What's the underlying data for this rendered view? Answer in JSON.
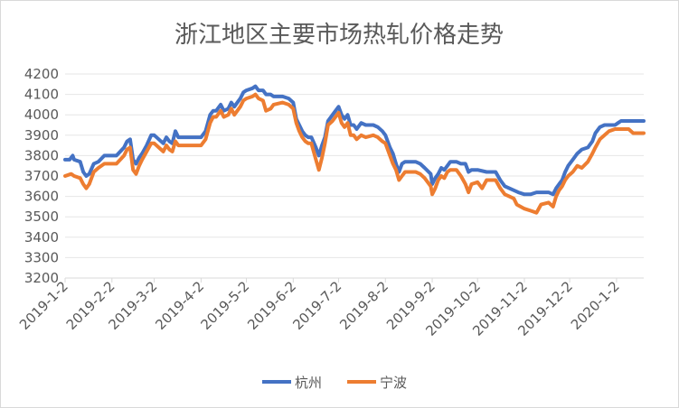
{
  "chart_data": {
    "type": "line",
    "title": "浙江地区主要市场热轧价格走势",
    "xlabel": "",
    "ylabel": "",
    "ylim": [
      3200,
      4200
    ],
    "yticks": [
      3200,
      3300,
      3400,
      3500,
      3600,
      3700,
      3800,
      3900,
      4000,
      4100,
      4200
    ],
    "date_range": [
      "2019-01-02",
      "2020-01-20"
    ],
    "xticks": [
      "2019-1-2",
      "2019-2-2",
      "2019-3-2",
      "2019-4-2",
      "2019-5-2",
      "2019-6-2",
      "2019-7-2",
      "2019-8-2",
      "2019-9-2",
      "2019-10-2",
      "2019-11-2",
      "2019-12-2",
      "2020-1-2"
    ],
    "grid": "horizontal",
    "legend_position": "bottom",
    "series": [
      {
        "name": "杭州",
        "color": "#4472C4",
        "points": [
          [
            "2019-01-02",
            3780
          ],
          [
            "2019-01-05",
            3780
          ],
          [
            "2019-01-07",
            3800
          ],
          [
            "2019-01-08",
            3780
          ],
          [
            "2019-01-12",
            3770
          ],
          [
            "2019-01-14",
            3720
          ],
          [
            "2019-01-16",
            3700
          ],
          [
            "2019-01-18",
            3710
          ],
          [
            "2019-01-21",
            3760
          ],
          [
            "2019-01-24",
            3770
          ],
          [
            "2019-01-28",
            3800
          ],
          [
            "2019-02-05",
            3800
          ],
          [
            "2019-02-10",
            3840
          ],
          [
            "2019-02-12",
            3870
          ],
          [
            "2019-02-14",
            3880
          ],
          [
            "2019-02-16",
            3780
          ],
          [
            "2019-02-18",
            3760
          ],
          [
            "2019-02-20",
            3790
          ],
          [
            "2019-02-22",
            3810
          ],
          [
            "2019-02-25",
            3850
          ],
          [
            "2019-02-28",
            3900
          ],
          [
            "2019-03-02",
            3900
          ],
          [
            "2019-03-05",
            3880
          ],
          [
            "2019-03-08",
            3860
          ],
          [
            "2019-03-10",
            3890
          ],
          [
            "2019-03-12",
            3870
          ],
          [
            "2019-03-14",
            3860
          ],
          [
            "2019-03-16",
            3920
          ],
          [
            "2019-03-18",
            3890
          ],
          [
            "2019-03-25",
            3890
          ],
          [
            "2019-04-02",
            3890
          ],
          [
            "2019-04-05",
            3920
          ],
          [
            "2019-04-08",
            4000
          ],
          [
            "2019-04-10",
            4020
          ],
          [
            "2019-04-12",
            4020
          ],
          [
            "2019-04-15",
            4050
          ],
          [
            "2019-04-17",
            4020
          ],
          [
            "2019-04-20",
            4030
          ],
          [
            "2019-04-22",
            4060
          ],
          [
            "2019-04-24",
            4040
          ],
          [
            "2019-04-26",
            4060
          ],
          [
            "2019-04-28",
            4080
          ],
          [
            "2019-04-30",
            4110
          ],
          [
            "2019-05-02",
            4120
          ],
          [
            "2019-05-06",
            4130
          ],
          [
            "2019-05-08",
            4140
          ],
          [
            "2019-05-10",
            4120
          ],
          [
            "2019-05-13",
            4120
          ],
          [
            "2019-05-15",
            4100
          ],
          [
            "2019-05-18",
            4100
          ],
          [
            "2019-05-20",
            4090
          ],
          [
            "2019-05-26",
            4090
          ],
          [
            "2019-05-30",
            4080
          ],
          [
            "2019-06-02",
            4060
          ],
          [
            "2019-06-04",
            3980
          ],
          [
            "2019-06-06",
            3950
          ],
          [
            "2019-06-08",
            3920
          ],
          [
            "2019-06-10",
            3900
          ],
          [
            "2019-06-12",
            3890
          ],
          [
            "2019-06-14",
            3890
          ],
          [
            "2019-06-17",
            3840
          ],
          [
            "2019-06-19",
            3800
          ],
          [
            "2019-06-21",
            3850
          ],
          [
            "2019-06-23",
            3890
          ],
          [
            "2019-06-25",
            3970
          ],
          [
            "2019-06-28",
            4000
          ],
          [
            "2019-07-02",
            4040
          ],
          [
            "2019-07-04",
            4000
          ],
          [
            "2019-07-06",
            3980
          ],
          [
            "2019-07-08",
            4000
          ],
          [
            "2019-07-10",
            3950
          ],
          [
            "2019-07-12",
            3950
          ],
          [
            "2019-07-14",
            3930
          ],
          [
            "2019-07-17",
            3960
          ],
          [
            "2019-07-20",
            3950
          ],
          [
            "2019-07-25",
            3950
          ],
          [
            "2019-07-28",
            3940
          ],
          [
            "2019-07-31",
            3920
          ],
          [
            "2019-08-02",
            3900
          ],
          [
            "2019-08-05",
            3840
          ],
          [
            "2019-08-07",
            3810
          ],
          [
            "2019-08-09",
            3760
          ],
          [
            "2019-08-11",
            3720
          ],
          [
            "2019-08-13",
            3760
          ],
          [
            "2019-08-15",
            3770
          ],
          [
            "2019-08-17",
            3770
          ],
          [
            "2019-08-22",
            3770
          ],
          [
            "2019-08-25",
            3760
          ],
          [
            "2019-08-28",
            3740
          ],
          [
            "2019-09-01",
            3710
          ],
          [
            "2019-09-02",
            3660
          ],
          [
            "2019-09-04",
            3690
          ],
          [
            "2019-09-06",
            3710
          ],
          [
            "2019-09-08",
            3740
          ],
          [
            "2019-09-10",
            3730
          ],
          [
            "2019-09-12",
            3750
          ],
          [
            "2019-09-14",
            3770
          ],
          [
            "2019-09-18",
            3770
          ],
          [
            "2019-09-21",
            3760
          ],
          [
            "2019-09-24",
            3760
          ],
          [
            "2019-09-26",
            3720
          ],
          [
            "2019-09-28",
            3730
          ],
          [
            "2019-10-02",
            3730
          ],
          [
            "2019-10-08",
            3720
          ],
          [
            "2019-10-14",
            3720
          ],
          [
            "2019-10-17",
            3680
          ],
          [
            "2019-10-20",
            3650
          ],
          [
            "2019-10-23",
            3640
          ],
          [
            "2019-10-26",
            3630
          ],
          [
            "2019-10-29",
            3620
          ],
          [
            "2019-11-02",
            3610
          ],
          [
            "2019-11-06",
            3610
          ],
          [
            "2019-11-10",
            3620
          ],
          [
            "2019-11-18",
            3620
          ],
          [
            "2019-11-21",
            3610
          ],
          [
            "2019-11-23",
            3640
          ],
          [
            "2019-11-25",
            3660
          ],
          [
            "2019-11-27",
            3680
          ],
          [
            "2019-11-29",
            3720
          ],
          [
            "2019-12-01",
            3750
          ],
          [
            "2019-12-04",
            3780
          ],
          [
            "2019-12-07",
            3810
          ],
          [
            "2019-12-10",
            3830
          ],
          [
            "2019-12-14",
            3840
          ],
          [
            "2019-12-17",
            3870
          ],
          [
            "2019-12-19",
            3910
          ],
          [
            "2019-12-22",
            3940
          ],
          [
            "2019-12-25",
            3950
          ],
          [
            "2020-01-01",
            3950
          ],
          [
            "2020-01-03",
            3960
          ],
          [
            "2020-01-05",
            3970
          ],
          [
            "2020-01-07",
            3970
          ],
          [
            "2020-01-20",
            3970
          ]
        ]
      },
      {
        "name": "宁波",
        "color": "#ED7D31",
        "points": [
          [
            "2019-01-02",
            3700
          ],
          [
            "2019-01-06",
            3710
          ],
          [
            "2019-01-08",
            3700
          ],
          [
            "2019-01-12",
            3690
          ],
          [
            "2019-01-14",
            3660
          ],
          [
            "2019-01-16",
            3640
          ],
          [
            "2019-01-18",
            3660
          ],
          [
            "2019-01-21",
            3720
          ],
          [
            "2019-01-24",
            3740
          ],
          [
            "2019-01-28",
            3760
          ],
          [
            "2019-02-05",
            3760
          ],
          [
            "2019-02-10",
            3800
          ],
          [
            "2019-02-12",
            3830
          ],
          [
            "2019-02-14",
            3840
          ],
          [
            "2019-02-16",
            3730
          ],
          [
            "2019-02-18",
            3710
          ],
          [
            "2019-02-20",
            3750
          ],
          [
            "2019-02-22",
            3780
          ],
          [
            "2019-02-25",
            3820
          ],
          [
            "2019-02-28",
            3860
          ],
          [
            "2019-03-02",
            3860
          ],
          [
            "2019-03-05",
            3840
          ],
          [
            "2019-03-08",
            3820
          ],
          [
            "2019-03-10",
            3850
          ],
          [
            "2019-03-12",
            3830
          ],
          [
            "2019-03-14",
            3820
          ],
          [
            "2019-03-16",
            3870
          ],
          [
            "2019-03-18",
            3850
          ],
          [
            "2019-03-25",
            3850
          ],
          [
            "2019-04-02",
            3850
          ],
          [
            "2019-04-05",
            3880
          ],
          [
            "2019-04-08",
            3960
          ],
          [
            "2019-04-10",
            3990
          ],
          [
            "2019-04-12",
            3990
          ],
          [
            "2019-04-15",
            4020
          ],
          [
            "2019-04-17",
            3990
          ],
          [
            "2019-04-20",
            4000
          ],
          [
            "2019-04-22",
            4030
          ],
          [
            "2019-04-24",
            4000
          ],
          [
            "2019-04-26",
            4020
          ],
          [
            "2019-04-28",
            4040
          ],
          [
            "2019-04-30",
            4070
          ],
          [
            "2019-05-02",
            4080
          ],
          [
            "2019-05-06",
            4090
          ],
          [
            "2019-05-08",
            4100
          ],
          [
            "2019-05-10",
            4080
          ],
          [
            "2019-05-13",
            4070
          ],
          [
            "2019-05-15",
            4020
          ],
          [
            "2019-05-18",
            4030
          ],
          [
            "2019-05-20",
            4050
          ],
          [
            "2019-05-26",
            4060
          ],
          [
            "2019-05-30",
            4050
          ],
          [
            "2019-06-02",
            4030
          ],
          [
            "2019-06-04",
            3960
          ],
          [
            "2019-06-06",
            3920
          ],
          [
            "2019-06-08",
            3890
          ],
          [
            "2019-06-10",
            3870
          ],
          [
            "2019-06-12",
            3860
          ],
          [
            "2019-06-14",
            3860
          ],
          [
            "2019-06-17",
            3780
          ],
          [
            "2019-06-19",
            3730
          ],
          [
            "2019-06-21",
            3790
          ],
          [
            "2019-06-23",
            3860
          ],
          [
            "2019-06-25",
            3950
          ],
          [
            "2019-06-28",
            3970
          ],
          [
            "2019-07-02",
            4010
          ],
          [
            "2019-07-04",
            3960
          ],
          [
            "2019-07-06",
            3940
          ],
          [
            "2019-07-08",
            3960
          ],
          [
            "2019-07-10",
            3900
          ],
          [
            "2019-07-12",
            3900
          ],
          [
            "2019-07-14",
            3880
          ],
          [
            "2019-07-17",
            3900
          ],
          [
            "2019-07-20",
            3890
          ],
          [
            "2019-07-25",
            3900
          ],
          [
            "2019-07-28",
            3890
          ],
          [
            "2019-07-31",
            3870
          ],
          [
            "2019-08-02",
            3860
          ],
          [
            "2019-08-05",
            3800
          ],
          [
            "2019-08-07",
            3760
          ],
          [
            "2019-08-09",
            3730
          ],
          [
            "2019-08-11",
            3680
          ],
          [
            "2019-08-13",
            3700
          ],
          [
            "2019-08-15",
            3720
          ],
          [
            "2019-08-17",
            3720
          ],
          [
            "2019-08-22",
            3720
          ],
          [
            "2019-08-25",
            3710
          ],
          [
            "2019-08-28",
            3690
          ],
          [
            "2019-09-01",
            3650
          ],
          [
            "2019-09-02",
            3610
          ],
          [
            "2019-09-04",
            3640
          ],
          [
            "2019-09-06",
            3680
          ],
          [
            "2019-09-08",
            3700
          ],
          [
            "2019-09-10",
            3690
          ],
          [
            "2019-09-12",
            3720
          ],
          [
            "2019-09-14",
            3730
          ],
          [
            "2019-09-18",
            3730
          ],
          [
            "2019-09-21",
            3700
          ],
          [
            "2019-09-24",
            3660
          ],
          [
            "2019-09-26",
            3620
          ],
          [
            "2019-09-28",
            3660
          ],
          [
            "2019-10-02",
            3670
          ],
          [
            "2019-10-05",
            3640
          ],
          [
            "2019-10-08",
            3680
          ],
          [
            "2019-10-14",
            3680
          ],
          [
            "2019-10-17",
            3640
          ],
          [
            "2019-10-20",
            3610
          ],
          [
            "2019-10-23",
            3600
          ],
          [
            "2019-10-26",
            3590
          ],
          [
            "2019-10-28",
            3560
          ],
          [
            "2019-11-02",
            3540
          ],
          [
            "2019-11-06",
            3530
          ],
          [
            "2019-11-10",
            3520
          ],
          [
            "2019-11-13",
            3560
          ],
          [
            "2019-11-18",
            3570
          ],
          [
            "2019-11-21",
            3550
          ],
          [
            "2019-11-23",
            3600
          ],
          [
            "2019-11-25",
            3630
          ],
          [
            "2019-11-27",
            3650
          ],
          [
            "2019-11-29",
            3680
          ],
          [
            "2019-12-01",
            3700
          ],
          [
            "2019-12-04",
            3720
          ],
          [
            "2019-12-07",
            3750
          ],
          [
            "2019-12-10",
            3740
          ],
          [
            "2019-12-14",
            3770
          ],
          [
            "2019-12-17",
            3810
          ],
          [
            "2019-12-19",
            3840
          ],
          [
            "2019-12-22",
            3880
          ],
          [
            "2019-12-25",
            3900
          ],
          [
            "2019-12-28",
            3920
          ],
          [
            "2020-01-01",
            3930
          ],
          [
            "2020-01-05",
            3930
          ],
          [
            "2020-01-10",
            3930
          ],
          [
            "2020-01-13",
            3910
          ],
          [
            "2020-01-20",
            3910
          ]
        ]
      }
    ]
  }
}
